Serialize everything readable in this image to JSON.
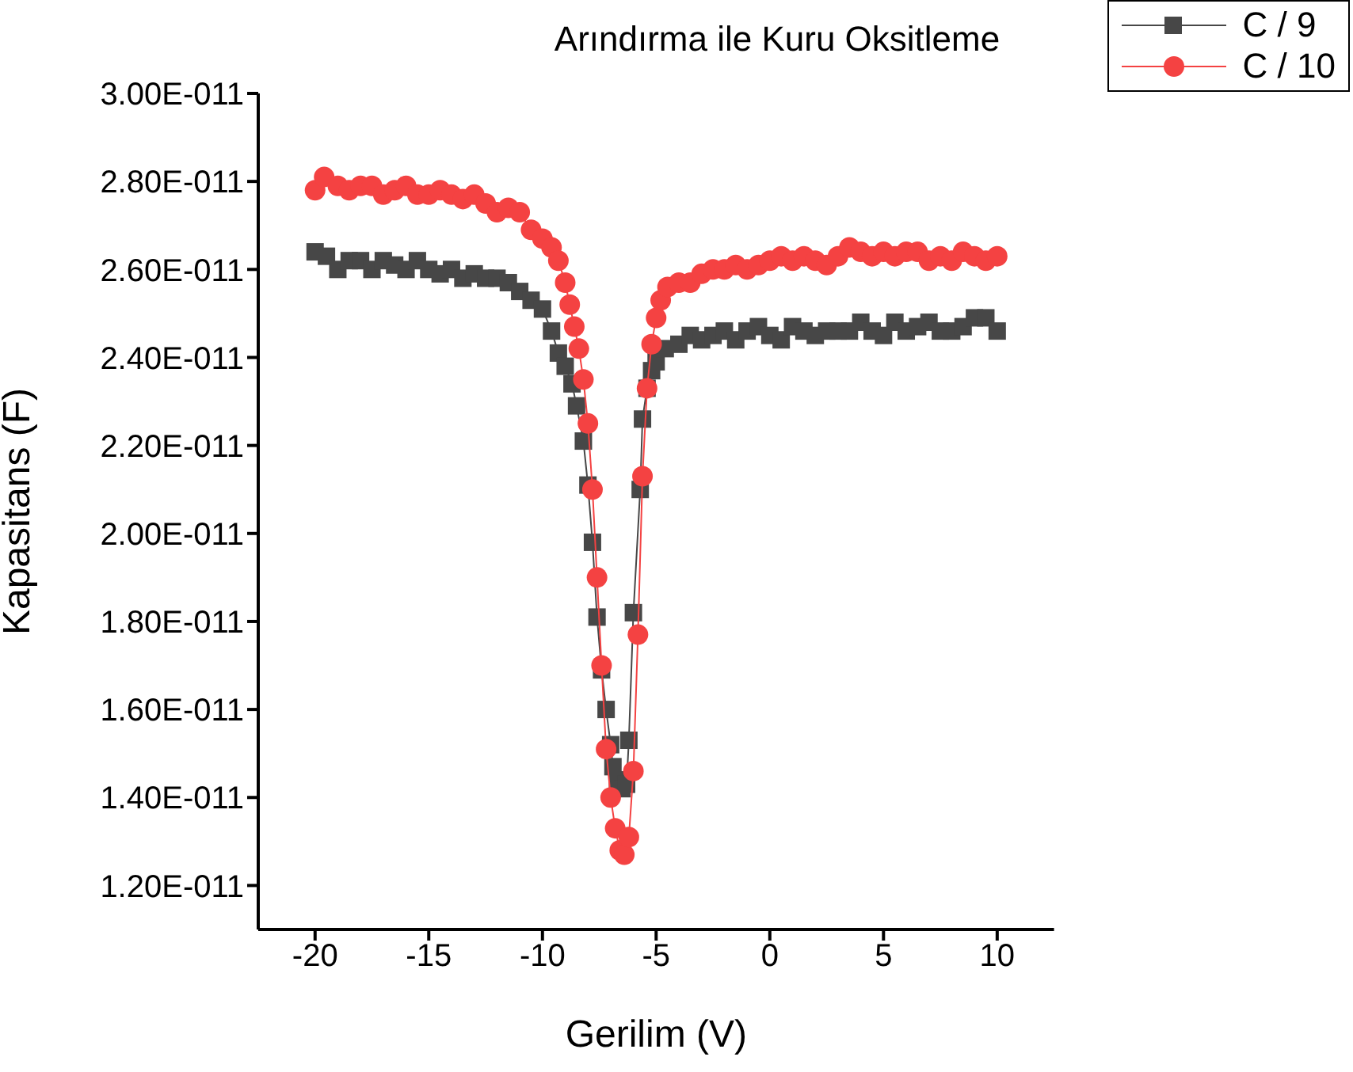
{
  "chart_data": {
    "type": "line",
    "title": "Arındırma ile Kuru Oksitleme",
    "xlabel": "Gerilim (V)",
    "ylabel": "Kapasitans (F)",
    "xlim": [
      -22.5,
      12.5
    ],
    "xticks": [
      -20,
      -15,
      -10,
      -5,
      0,
      5,
      10
    ],
    "ylim": [
      1.1e-11,
      3e-11
    ],
    "yticks": [
      {
        "value": 1.2e-11,
        "label": "1.20E-011"
      },
      {
        "value": 1.4e-11,
        "label": "1.40E-011"
      },
      {
        "value": 1.6e-11,
        "label": "1.60E-011"
      },
      {
        "value": 1.8e-11,
        "label": "1.80E-011"
      },
      {
        "value": 2e-11,
        "label": "2.00E-011"
      },
      {
        "value": 2.2e-11,
        "label": "2.20E-011"
      },
      {
        "value": 2.4e-11,
        "label": "2.40E-011"
      },
      {
        "value": 2.6e-11,
        "label": "2.60E-011"
      },
      {
        "value": 2.8e-11,
        "label": "2.80E-011"
      },
      {
        "value": 3e-11,
        "label": "3.00E-011"
      }
    ],
    "grid": false,
    "legend": "top right",
    "line_style": "solid",
    "series": [
      {
        "name": "C / 9",
        "color": "#474747",
        "marker": "square",
        "x": [
          -20,
          -19.5,
          -19,
          -18.5,
          -18,
          -17.5,
          -17,
          -16.5,
          -16,
          -15.5,
          -15,
          -14.5,
          -14,
          -13.5,
          -13,
          -12.5,
          -12,
          -11.5,
          -11,
          -10.5,
          -10,
          -9.6,
          -9.3,
          -9,
          -8.7,
          -8.5,
          -8.2,
          -8,
          -7.8,
          -7.6,
          -7.4,
          -7.2,
          -7,
          -6.9,
          -6.7,
          -6.5,
          -6.3,
          -6.2,
          -6,
          -5.7,
          -5.6,
          -5.4,
          -5.2,
          -5,
          -4.6,
          -4,
          -3.5,
          -3,
          -2.5,
          -2,
          -1.5,
          -1,
          -0.5,
          0,
          0.5,
          1,
          1.5,
          2,
          2.5,
          3,
          3.5,
          4,
          4.5,
          5,
          5.5,
          6,
          6.5,
          7,
          7.5,
          8,
          8.5,
          9,
          9.5,
          10
        ],
        "values": [
          2.64e-11,
          2.63e-11,
          2.6e-11,
          2.62e-11,
          2.62e-11,
          2.6e-11,
          2.62e-11,
          2.61e-11,
          2.6e-11,
          2.62e-11,
          2.6e-11,
          2.59e-11,
          2.6e-11,
          2.58e-11,
          2.59e-11,
          2.58e-11,
          2.58e-11,
          2.57e-11,
          2.55e-11,
          2.53e-11,
          2.51e-11,
          2.46e-11,
          2.41e-11,
          2.38e-11,
          2.34e-11,
          2.29e-11,
          2.21e-11,
          2.11e-11,
          1.98e-11,
          1.81e-11,
          1.69e-11,
          1.6e-11,
          1.52e-11,
          1.47e-11,
          1.44e-11,
          1.42e-11,
          1.43e-11,
          1.53e-11,
          1.82e-11,
          2.1e-11,
          2.26e-11,
          2.33e-11,
          2.37e-11,
          2.39e-11,
          2.42e-11,
          2.43e-11,
          2.45e-11,
          2.44e-11,
          2.45e-11,
          2.46e-11,
          2.44e-11,
          2.46e-11,
          2.47e-11,
          2.45e-11,
          2.44e-11,
          2.47e-11,
          2.46e-11,
          2.45e-11,
          2.46e-11,
          2.46e-11,
          2.46e-11,
          2.48e-11,
          2.46e-11,
          2.45e-11,
          2.48e-11,
          2.46e-11,
          2.47e-11,
          2.48e-11,
          2.46e-11,
          2.46e-11,
          2.47e-11,
          2.49e-11,
          2.49e-11,
          2.46e-11
        ]
      },
      {
        "name": "C / 10",
        "color": "#f44242",
        "marker": "circle",
        "x": [
          -20,
          -19.6,
          -19,
          -18.5,
          -18,
          -17.5,
          -17,
          -16.5,
          -16,
          -15.5,
          -15,
          -14.5,
          -14,
          -13.5,
          -13,
          -12.5,
          -12,
          -11.5,
          -11,
          -10.5,
          -10,
          -9.6,
          -9.3,
          -9,
          -8.8,
          -8.6,
          -8.4,
          -8.2,
          -8,
          -7.8,
          -7.6,
          -7.4,
          -7.2,
          -7,
          -6.8,
          -6.6,
          -6.4,
          -6.2,
          -6,
          -5.8,
          -5.6,
          -5.4,
          -5.2,
          -5,
          -4.8,
          -4.5,
          -4,
          -3.5,
          -3,
          -2.5,
          -2,
          -1.5,
          -1,
          -0.5,
          0,
          0.5,
          1,
          1.5,
          2,
          2.5,
          3,
          3.5,
          4,
          4.5,
          5,
          5.5,
          6,
          6.5,
          7,
          7.5,
          8,
          8.5,
          9,
          9.5,
          10
        ],
        "values": [
          2.78e-11,
          2.81e-11,
          2.79e-11,
          2.78e-11,
          2.79e-11,
          2.79e-11,
          2.77e-11,
          2.78e-11,
          2.79e-11,
          2.77e-11,
          2.77e-11,
          2.78e-11,
          2.77e-11,
          2.76e-11,
          2.77e-11,
          2.75e-11,
          2.73e-11,
          2.74e-11,
          2.73e-11,
          2.69e-11,
          2.67e-11,
          2.65e-11,
          2.62e-11,
          2.57e-11,
          2.52e-11,
          2.47e-11,
          2.42e-11,
          2.35e-11,
          2.25e-11,
          2.1e-11,
          1.9e-11,
          1.7e-11,
          1.51e-11,
          1.4e-11,
          1.33e-11,
          1.28e-11,
          1.27e-11,
          1.31e-11,
          1.46e-11,
          1.77e-11,
          2.13e-11,
          2.33e-11,
          2.43e-11,
          2.49e-11,
          2.53e-11,
          2.56e-11,
          2.57e-11,
          2.57e-11,
          2.59e-11,
          2.6e-11,
          2.6e-11,
          2.61e-11,
          2.6e-11,
          2.61e-11,
          2.62e-11,
          2.63e-11,
          2.62e-11,
          2.63e-11,
          2.62e-11,
          2.61e-11,
          2.63e-11,
          2.65e-11,
          2.64e-11,
          2.63e-11,
          2.64e-11,
          2.63e-11,
          2.64e-11,
          2.64e-11,
          2.62e-11,
          2.63e-11,
          2.62e-11,
          2.64e-11,
          2.63e-11,
          2.62e-11,
          2.63e-11
        ]
      }
    ]
  }
}
